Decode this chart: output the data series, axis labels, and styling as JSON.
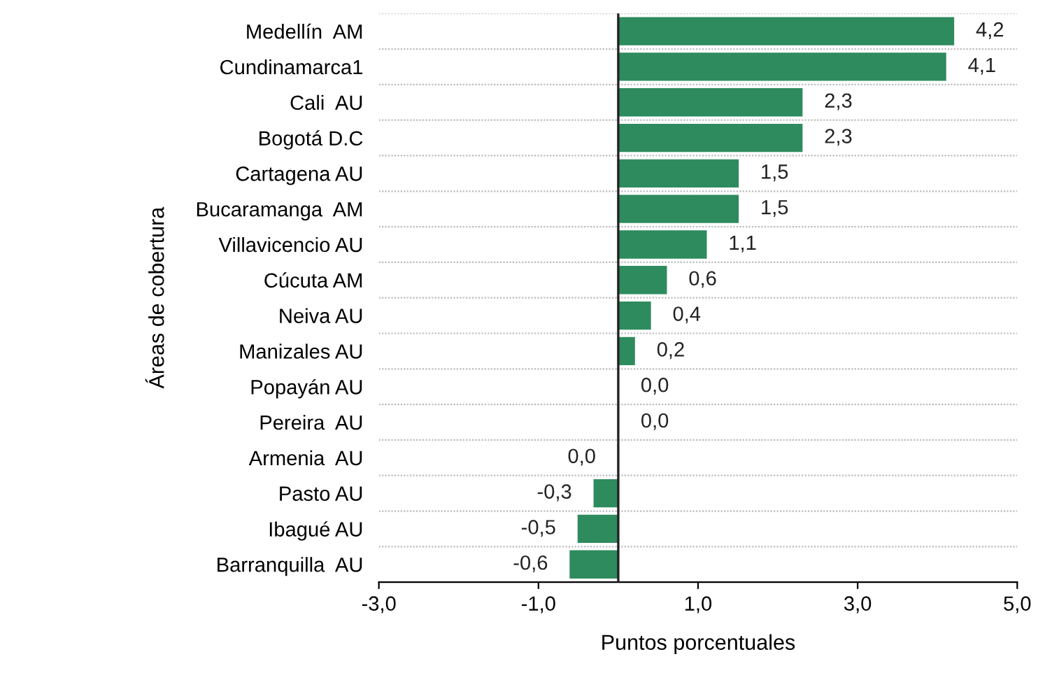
{
  "chart_data": {
    "type": "bar",
    "orientation": "horizontal",
    "xlabel": "Puntos porcentuales",
    "ylabel": "Áreas de cobertura",
    "categories": [
      "Medellín  AM",
      "Cundinamarca1",
      "Cali  AU",
      "Bogotá D.C",
      "Cartagena AU",
      "Bucaramanga  AM",
      "Villavicencio AU",
      "Cúcuta AM",
      "Neiva AU",
      "Manizales AU",
      "Popayán AU",
      "Pereira  AU",
      "Armenia  AU",
      "Pasto AU",
      "Ibagué AU",
      "Barranquilla  AU"
    ],
    "values": [
      4.2,
      4.1,
      2.3,
      2.3,
      1.5,
      1.5,
      1.1,
      0.6,
      0.4,
      0.2,
      0.0,
      0.0,
      -0.0,
      -0.3,
      -0.5,
      -0.6
    ],
    "value_labels": [
      "4,2",
      "4,1",
      "2,3",
      "2,3",
      "1,5",
      "1,5",
      "1,1",
      "0,6",
      "0,4",
      "0,2",
      "0,0",
      "0,0",
      "0,0",
      "-0,3",
      "-0,5",
      "-0,6"
    ],
    "color": "#2e8b5e",
    "xlim": [
      -3.0,
      5.0
    ],
    "xticks": [
      {
        "value": -3.0,
        "label": "-3,0"
      },
      {
        "value": -1.0,
        "label": "-1,0"
      },
      {
        "value": 1.0,
        "label": "1,0"
      },
      {
        "value": 3.0,
        "label": "3,0"
      },
      {
        "value": 5.0,
        "label": "5,0"
      }
    ],
    "grid": "y",
    "legend": false
  }
}
